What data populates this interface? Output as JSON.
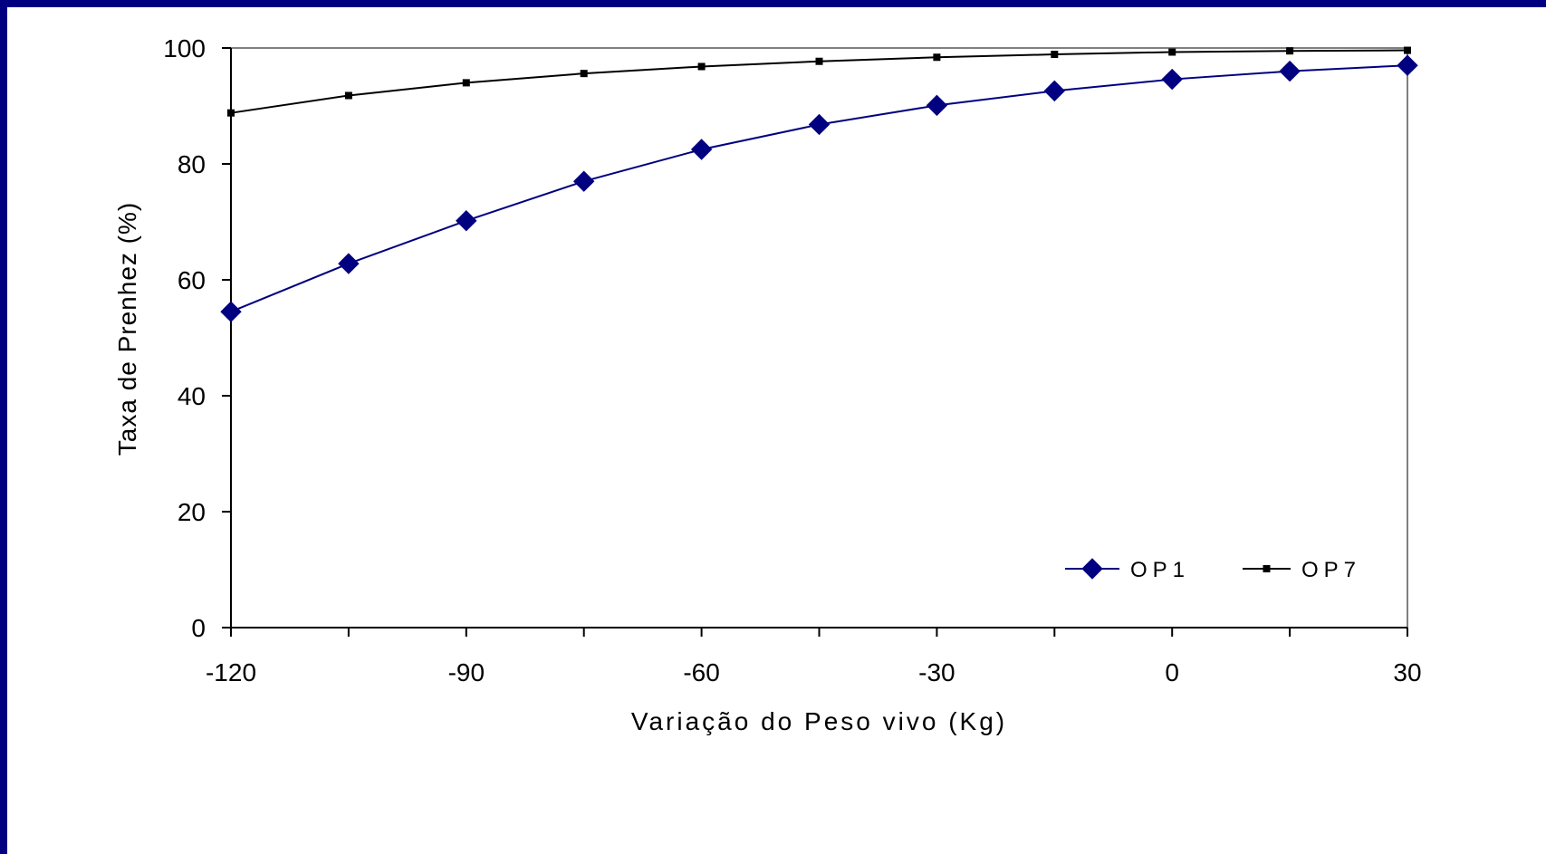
{
  "chart_data": {
    "type": "line",
    "title": "",
    "xlabel": "Variação do Peso vivo  (Kg)",
    "ylabel": "Taxa de Prenhez (%)",
    "xlim": [
      -120,
      30
    ],
    "ylim": [
      0,
      100
    ],
    "x_ticks": [
      "-120",
      "-90",
      "-60",
      "-30",
      "0",
      "30"
    ],
    "y_ticks": [
      "0",
      "20",
      "40",
      "60",
      "80",
      "100"
    ],
    "legend_position": "bottom-right",
    "grid": false,
    "x": [
      -120,
      -105,
      -90,
      -75,
      -60,
      -45,
      -30,
      -15,
      0,
      15,
      30
    ],
    "series": [
      {
        "name": "OP1",
        "color": "#000080",
        "marker": "diamond",
        "values": [
          54.5,
          62.8,
          70.2,
          77.0,
          82.5,
          86.8,
          90.1,
          92.6,
          94.6,
          96.0,
          97.0
        ]
      },
      {
        "name": "OP7",
        "color": "#000000",
        "marker": "small-square",
        "values": [
          88.8,
          91.8,
          94.0,
          95.6,
          96.8,
          97.7,
          98.4,
          98.9,
          99.3,
          99.5,
          99.6
        ]
      }
    ]
  }
}
